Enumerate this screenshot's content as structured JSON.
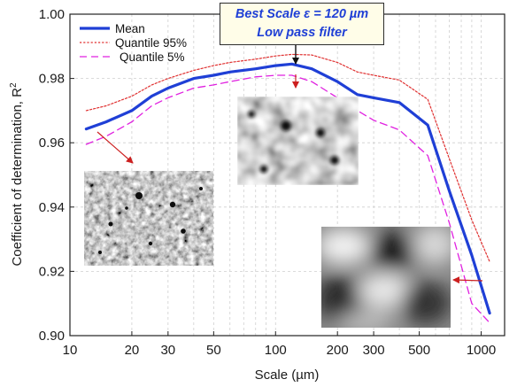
{
  "chart_data": {
    "type": "line",
    "xscale": "log",
    "xlim": [
      10,
      1300
    ],
    "ylim": [
      0.9,
      1.0
    ],
    "xlabel": "Scale (µm)",
    "ylabel": "Coefficient of determination, R",
    "ylabel_sup": "2",
    "xticks": [
      10,
      20,
      30,
      50,
      100,
      200,
      300,
      500,
      1000
    ],
    "xtick_labels": [
      "10",
      "20",
      "30",
      "50",
      "100",
      "200",
      "300",
      "500",
      "1000"
    ],
    "yticks": [
      0.9,
      0.92,
      0.94,
      0.96,
      0.98,
      1.0
    ],
    "ytick_labels": [
      "0.90",
      "0.92",
      "0.94",
      "0.96",
      "0.98",
      "1.00"
    ],
    "grid": true,
    "legend_position": "top-left",
    "series": [
      {
        "name": "Mean",
        "color": "#1f3fd6",
        "style": "solid",
        "x": [
          12,
          15,
          20,
          25,
          30,
          40,
          50,
          60,
          80,
          100,
          120,
          150,
          200,
          250,
          300,
          400,
          550,
          700,
          900,
          1100
        ],
        "y": [
          0.9643,
          0.9665,
          0.97,
          0.9745,
          0.977,
          0.98,
          0.981,
          0.982,
          0.983,
          0.984,
          0.9845,
          0.983,
          0.979,
          0.975,
          0.974,
          0.9725,
          0.9655,
          0.945,
          0.925,
          0.907
        ]
      },
      {
        "name": "Quantile 95%",
        "color": "#e03030",
        "style": "dotted",
        "x": [
          12,
          15,
          20,
          25,
          30,
          40,
          50,
          60,
          80,
          100,
          120,
          150,
          200,
          250,
          300,
          400,
          550,
          700,
          900,
          1100
        ],
        "y": [
          0.97,
          0.9715,
          0.9745,
          0.978,
          0.98,
          0.9825,
          0.984,
          0.985,
          0.986,
          0.987,
          0.9875,
          0.9873,
          0.985,
          0.982,
          0.981,
          0.9795,
          0.9735,
          0.955,
          0.936,
          0.923
        ]
      },
      {
        "name": "Quantile 5%",
        "color": "#e020e0",
        "style": "dashed",
        "x": [
          12,
          15,
          20,
          25,
          30,
          40,
          50,
          60,
          80,
          100,
          120,
          150,
          200,
          250,
          300,
          400,
          550,
          700,
          900,
          1100
        ],
        "y": [
          0.9595,
          0.962,
          0.9665,
          0.9715,
          0.974,
          0.977,
          0.978,
          0.979,
          0.9805,
          0.981,
          0.981,
          0.979,
          0.974,
          0.97,
          0.967,
          0.964,
          0.956,
          0.935,
          0.91,
          0.904
        ]
      }
    ],
    "annotations": {
      "best_scale_line1": "Best Scale ε = 120 µm",
      "best_scale_line2": "Low pass filter",
      "best_scale_x": 120
    }
  }
}
